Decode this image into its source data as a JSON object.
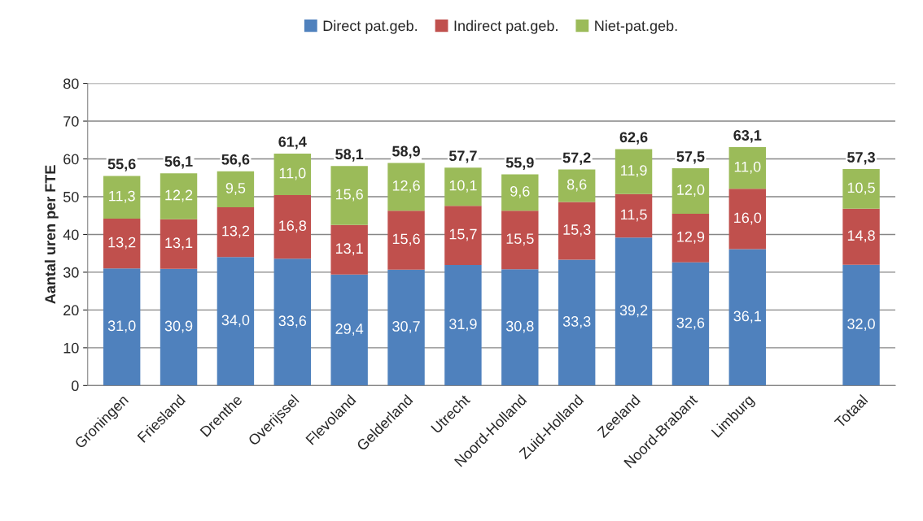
{
  "chart_data": {
    "type": "bar",
    "stacked": true,
    "ylabel": "Aantal uren per FTE",
    "categories": [
      "Groningen",
      "Friesland",
      "Drenthe",
      "Overijssel",
      "Flevoland",
      "Gelderland",
      "Utrecht",
      "Noord-Holland",
      "Zuid-Holland",
      "Zeeland",
      "Noord-Brabant",
      "Limburg",
      null,
      "Totaal"
    ],
    "series": [
      {
        "name": "Direct pat.geb.",
        "color": "#4f81bd",
        "values": [
          31.0,
          30.9,
          34.0,
          33.6,
          29.4,
          30.7,
          31.9,
          30.8,
          33.3,
          39.2,
          32.6,
          36.1,
          null,
          32.0
        ],
        "value_labels": [
          "31,0",
          "30,9",
          "34,0",
          "33,6",
          "29,4",
          "30,7",
          "31,9",
          "30,8",
          "33,3",
          "39,2",
          "32,6",
          "36,1",
          null,
          "32,0"
        ]
      },
      {
        "name": "Indirect pat.geb.",
        "color": "#c0504d",
        "values": [
          13.2,
          13.1,
          13.2,
          16.8,
          13.1,
          15.6,
          15.7,
          15.5,
          15.3,
          11.5,
          12.9,
          16.0,
          null,
          14.8
        ],
        "value_labels": [
          "13,2",
          "13,1",
          "13,2",
          "16,8",
          "13,1",
          "15,6",
          "15,7",
          "15,5",
          "15,3",
          "11,5",
          "12,9",
          "16,0",
          null,
          "14,8"
        ]
      },
      {
        "name": "Niet-pat.geb.",
        "color": "#9bbb59",
        "values": [
          11.3,
          12.2,
          9.5,
          11.0,
          15.6,
          12.6,
          10.1,
          9.6,
          8.6,
          11.9,
          12.0,
          11.0,
          null,
          10.5
        ],
        "value_labels": [
          "11,3",
          "12,2",
          "9,5",
          "11,0",
          "15,6",
          "12,6",
          "10,1",
          "9,6",
          "8,6",
          "11,9",
          "12,0",
          "11,0",
          null,
          "10,5"
        ]
      }
    ],
    "totals": [
      "55,6",
      "56,1",
      "56,6",
      "61,4",
      "58,1",
      "58,9",
      "57,7",
      "55,9",
      "57,2",
      "62,6",
      "57,5",
      "63,1",
      null,
      "57,3"
    ],
    "ylim": [
      0,
      80
    ],
    "yticks": [
      0,
      10,
      20,
      30,
      40,
      50,
      60,
      70,
      80
    ],
    "grid": "y",
    "legend": "top"
  }
}
